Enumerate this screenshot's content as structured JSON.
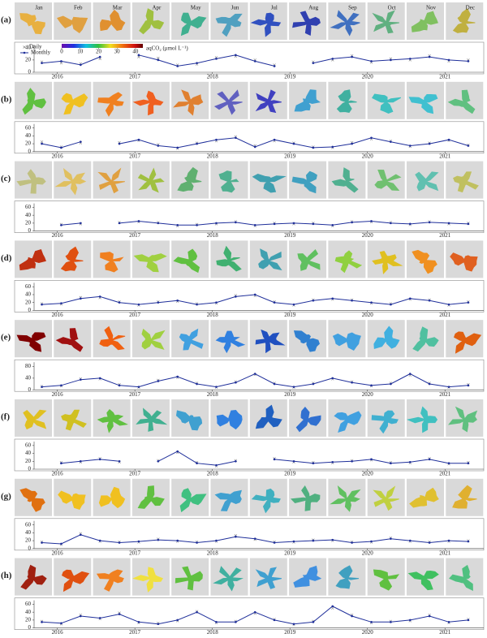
{
  "months": [
    "Jan",
    "Feb",
    "Mar",
    "Apr",
    "May",
    "Jun",
    "Jul",
    "Aug",
    "Sep",
    "Oct",
    "Nov",
    "Dec"
  ],
  "colorbar": {
    "label": "aqCO₂ (μmol L⁻¹)",
    "lim": [
      0,
      44
    ],
    "ticks": [
      0,
      10,
      20,
      30,
      40
    ]
  },
  "chart_data": [
    {
      "type": "line",
      "label": "(a)",
      "xlim": [
        2015.7,
        2021.5
      ],
      "xticks": [
        2016,
        2017,
        2018,
        2019,
        2020,
        2021
      ],
      "ylim": [
        0,
        45
      ],
      "yticks": [
        0,
        20,
        40
      ],
      "x": [
        2015.8,
        2016.05,
        2016.3,
        2016.55,
        2016.8,
        2017.05,
        2017.3,
        2017.55,
        2017.8,
        2018.05,
        2018.3,
        2018.55,
        2018.8,
        2019.05,
        2019.3,
        2019.55,
        2019.8,
        2020.05,
        2020.3,
        2020.55,
        2020.8,
        2021.05,
        2021.3
      ],
      "series": [
        {
          "name": "Daily",
          "color": "#888888",
          "values": [
            17,
            15,
            14,
            22,
            null,
            25,
            23,
            12,
            13,
            24,
            26,
            20,
            12,
            null,
            17,
            20,
            27,
            16,
            22,
            20,
            27,
            18,
            20
          ]
        },
        {
          "name": "Monthly",
          "color": "#1f2f9a",
          "values": [
            15,
            18,
            12,
            25,
            null,
            28,
            20,
            10,
            15,
            22,
            28,
            18,
            10,
            null,
            15,
            22,
            25,
            18,
            20,
            22,
            25,
            20,
            18
          ]
        }
      ]
    },
    {
      "type": "line",
      "label": "(b)",
      "xlim": [
        2015.7,
        2021.5
      ],
      "xticks": [
        2016,
        2017,
        2018,
        2019,
        2020,
        2021
      ],
      "ylim": [
        0,
        70
      ],
      "yticks": [
        0,
        20,
        40,
        60
      ],
      "x": [
        2015.8,
        2016.05,
        2016.3,
        2016.55,
        2016.8,
        2017.05,
        2017.3,
        2017.55,
        2017.8,
        2018.05,
        2018.3,
        2018.55,
        2018.8,
        2019.05,
        2019.3,
        2019.55,
        2019.8,
        2020.05,
        2020.3,
        2020.55,
        2020.8,
        2021.05,
        2021.3
      ],
      "series": [
        {
          "name": "Daily",
          "color": "#888888",
          "values": [
            25,
            12,
            22,
            null,
            23,
            28,
            18,
            8,
            22,
            27,
            38,
            15,
            27,
            22,
            12,
            10,
            23,
            32,
            27,
            13,
            22,
            28,
            17
          ]
        },
        {
          "name": "Monthly",
          "color": "#1f2f9a",
          "values": [
            20,
            10,
            25,
            null,
            20,
            30,
            15,
            10,
            20,
            30,
            35,
            12,
            30,
            20,
            10,
            12,
            20,
            35,
            25,
            15,
            20,
            30,
            15
          ]
        }
      ]
    },
    {
      "type": "line",
      "label": "(c)",
      "xlim": [
        2015.7,
        2021.5
      ],
      "xticks": [
        2016,
        2017,
        2018,
        2019,
        2020,
        2021
      ],
      "ylim": [
        0,
        70
      ],
      "yticks": [
        0,
        20,
        40,
        60
      ],
      "x": [
        2015.8,
        2016.05,
        2016.3,
        2016.55,
        2016.8,
        2017.05,
        2017.3,
        2017.55,
        2017.8,
        2018.05,
        2018.3,
        2018.55,
        2018.8,
        2019.05,
        2019.3,
        2019.55,
        2019.8,
        2020.05,
        2020.3,
        2020.55,
        2020.8,
        2021.05,
        2021.3
      ],
      "series": [
        {
          "name": "Daily",
          "color": "#888888",
          "values": [
            null,
            17,
            18,
            null,
            22,
            23,
            22,
            13,
            17,
            18,
            24,
            13,
            20,
            18,
            20,
            13,
            24,
            23,
            22,
            16,
            24,
            18,
            20
          ]
        },
        {
          "name": "Monthly",
          "color": "#1f2f9a",
          "values": [
            null,
            15,
            20,
            null,
            20,
            25,
            20,
            15,
            15,
            20,
            22,
            15,
            18,
            20,
            18,
            15,
            22,
            25,
            20,
            18,
            22,
            20,
            18
          ]
        }
      ]
    },
    {
      "type": "line",
      "label": "(d)",
      "xlim": [
        2015.7,
        2021.5
      ],
      "xticks": [
        2016,
        2017,
        2018,
        2019,
        2020,
        2021
      ],
      "ylim": [
        0,
        70
      ],
      "yticks": [
        0,
        20,
        40,
        60
      ],
      "x": [
        2015.8,
        2016.05,
        2016.3,
        2016.55,
        2016.8,
        2017.05,
        2017.3,
        2017.55,
        2017.8,
        2018.05,
        2018.3,
        2018.55,
        2018.8,
        2019.05,
        2019.3,
        2019.55,
        2019.8,
        2020.05,
        2020.3,
        2020.55,
        2020.8,
        2021.05,
        2021.3
      ],
      "series": [
        {
          "name": "Daily",
          "color": "#888888",
          "values": [
            17,
            16,
            33,
            32,
            22,
            13,
            22,
            23,
            17,
            18,
            38,
            37,
            22,
            13,
            27,
            28,
            27,
            18,
            17,
            28,
            27,
            13,
            22
          ]
        },
        {
          "name": "Monthly",
          "color": "#1f2f9a",
          "values": [
            15,
            18,
            30,
            35,
            20,
            15,
            20,
            25,
            15,
            20,
            35,
            40,
            20,
            15,
            25,
            30,
            25,
            20,
            15,
            30,
            25,
            15,
            20
          ]
        }
      ]
    },
    {
      "type": "line",
      "label": "(e)",
      "xlim": [
        2015.7,
        2021.5
      ],
      "xticks": [
        2016,
        2017,
        2018,
        2019,
        2020,
        2021
      ],
      "ylim": [
        0,
        95
      ],
      "yticks": [
        0,
        40,
        80
      ],
      "x": [
        2015.8,
        2016.05,
        2016.3,
        2016.55,
        2016.8,
        2017.05,
        2017.3,
        2017.55,
        2017.8,
        2018.05,
        2018.3,
        2018.55,
        2018.8,
        2019.05,
        2019.3,
        2019.55,
        2019.8,
        2020.05,
        2020.3,
        2020.55,
        2020.8,
        2021.05,
        2021.3
      ],
      "series": [
        {
          "name": "Daily",
          "color": "#888888",
          "values": [
            12,
            13,
            38,
            37,
            18,
            8,
            33,
            42,
            23,
            8,
            28,
            52,
            23,
            8,
            23,
            37,
            28,
            13,
            23,
            50,
            23,
            8,
            18
          ]
        },
        {
          "name": "Monthly",
          "color": "#1f2f9a",
          "values": [
            10,
            15,
            35,
            40,
            15,
            10,
            30,
            45,
            20,
            10,
            25,
            55,
            20,
            10,
            20,
            40,
            25,
            15,
            20,
            55,
            20,
            10,
            15
          ]
        }
      ]
    },
    {
      "type": "line",
      "label": "(f)",
      "xlim": [
        2015.7,
        2021.5
      ],
      "xticks": [
        2016,
        2017,
        2018,
        2019,
        2020,
        2021
      ],
      "ylim": [
        0,
        70
      ],
      "yticks": [
        0,
        20,
        40,
        60
      ],
      "x": [
        2015.8,
        2016.05,
        2016.3,
        2016.55,
        2016.8,
        2017.05,
        2017.3,
        2017.55,
        2017.8,
        2018.05,
        2018.3,
        2018.55,
        2018.8,
        2019.05,
        2019.3,
        2019.55,
        2019.8,
        2020.05,
        2020.3,
        2020.55,
        2020.8,
        2021.05,
        2021.3
      ],
      "series": [
        {
          "name": "Daily",
          "color": "#888888",
          "values": [
            null,
            17,
            18,
            27,
            18,
            null,
            22,
            42,
            17,
            8,
            22,
            null,
            27,
            18,
            17,
            16,
            22,
            23,
            17,
            16,
            27,
            13,
            17
          ]
        },
        {
          "name": "Monthly",
          "color": "#1f2f9a",
          "values": [
            null,
            15,
            20,
            25,
            20,
            null,
            20,
            45,
            15,
            10,
            20,
            null,
            25,
            20,
            15,
            18,
            20,
            25,
            15,
            18,
            25,
            15,
            15
          ]
        }
      ]
    },
    {
      "type": "line",
      "label": "(g)",
      "xlim": [
        2015.7,
        2021.5
      ],
      "xticks": [
        2016,
        2017,
        2018,
        2019,
        2020,
        2021
      ],
      "ylim": [
        0,
        70
      ],
      "yticks": [
        0,
        20,
        40,
        60
      ],
      "x": [
        2015.8,
        2016.05,
        2016.3,
        2016.55,
        2016.8,
        2017.05,
        2017.3,
        2017.55,
        2017.8,
        2018.05,
        2018.3,
        2018.55,
        2018.8,
        2019.05,
        2019.3,
        2019.55,
        2019.8,
        2020.05,
        2020.3,
        2020.55,
        2020.8,
        2021.05,
        2021.3
      ],
      "series": [
        {
          "name": "Daily",
          "color": "#888888",
          "values": [
            17,
            10,
            38,
            18,
            17,
            16,
            24,
            18,
            17,
            18,
            33,
            23,
            17,
            16,
            22,
            20,
            17,
            16,
            27,
            18,
            17,
            18,
            20
          ]
        },
        {
          "name": "Monthly",
          "color": "#1f2f9a",
          "values": [
            15,
            12,
            35,
            20,
            15,
            18,
            22,
            20,
            15,
            20,
            30,
            25,
            15,
            18,
            20,
            22,
            15,
            18,
            25,
            20,
            15,
            20,
            18
          ]
        }
      ]
    },
    {
      "type": "line",
      "label": "(h)",
      "xlim": [
        2015.7,
        2021.5
      ],
      "xticks": [
        2016,
        2017,
        2018,
        2019,
        2020,
        2021
      ],
      "ylim": [
        0,
        70
      ],
      "yticks": [
        0,
        20,
        40,
        60
      ],
      "x": [
        2015.8,
        2016.05,
        2016.3,
        2016.55,
        2016.8,
        2017.05,
        2017.3,
        2017.55,
        2017.8,
        2018.05,
        2018.3,
        2018.55,
        2018.8,
        2019.05,
        2019.3,
        2019.55,
        2019.8,
        2020.05,
        2020.3,
        2020.55,
        2020.8,
        2021.05,
        2021.3
      ],
      "series": [
        {
          "name": "Daily",
          "color": "#888888",
          "values": [
            17,
            10,
            33,
            23,
            38,
            13,
            12,
            18,
            42,
            13,
            17,
            37,
            22,
            8,
            17,
            50,
            33,
            13,
            17,
            18,
            33,
            13,
            22
          ]
        },
        {
          "name": "Monthly",
          "color": "#1f2f9a",
          "values": [
            15,
            12,
            30,
            25,
            35,
            15,
            10,
            20,
            40,
            15,
            15,
            40,
            20,
            10,
            15,
            55,
            30,
            15,
            15,
            20,
            30,
            15,
            20
          ]
        }
      ]
    }
  ]
}
